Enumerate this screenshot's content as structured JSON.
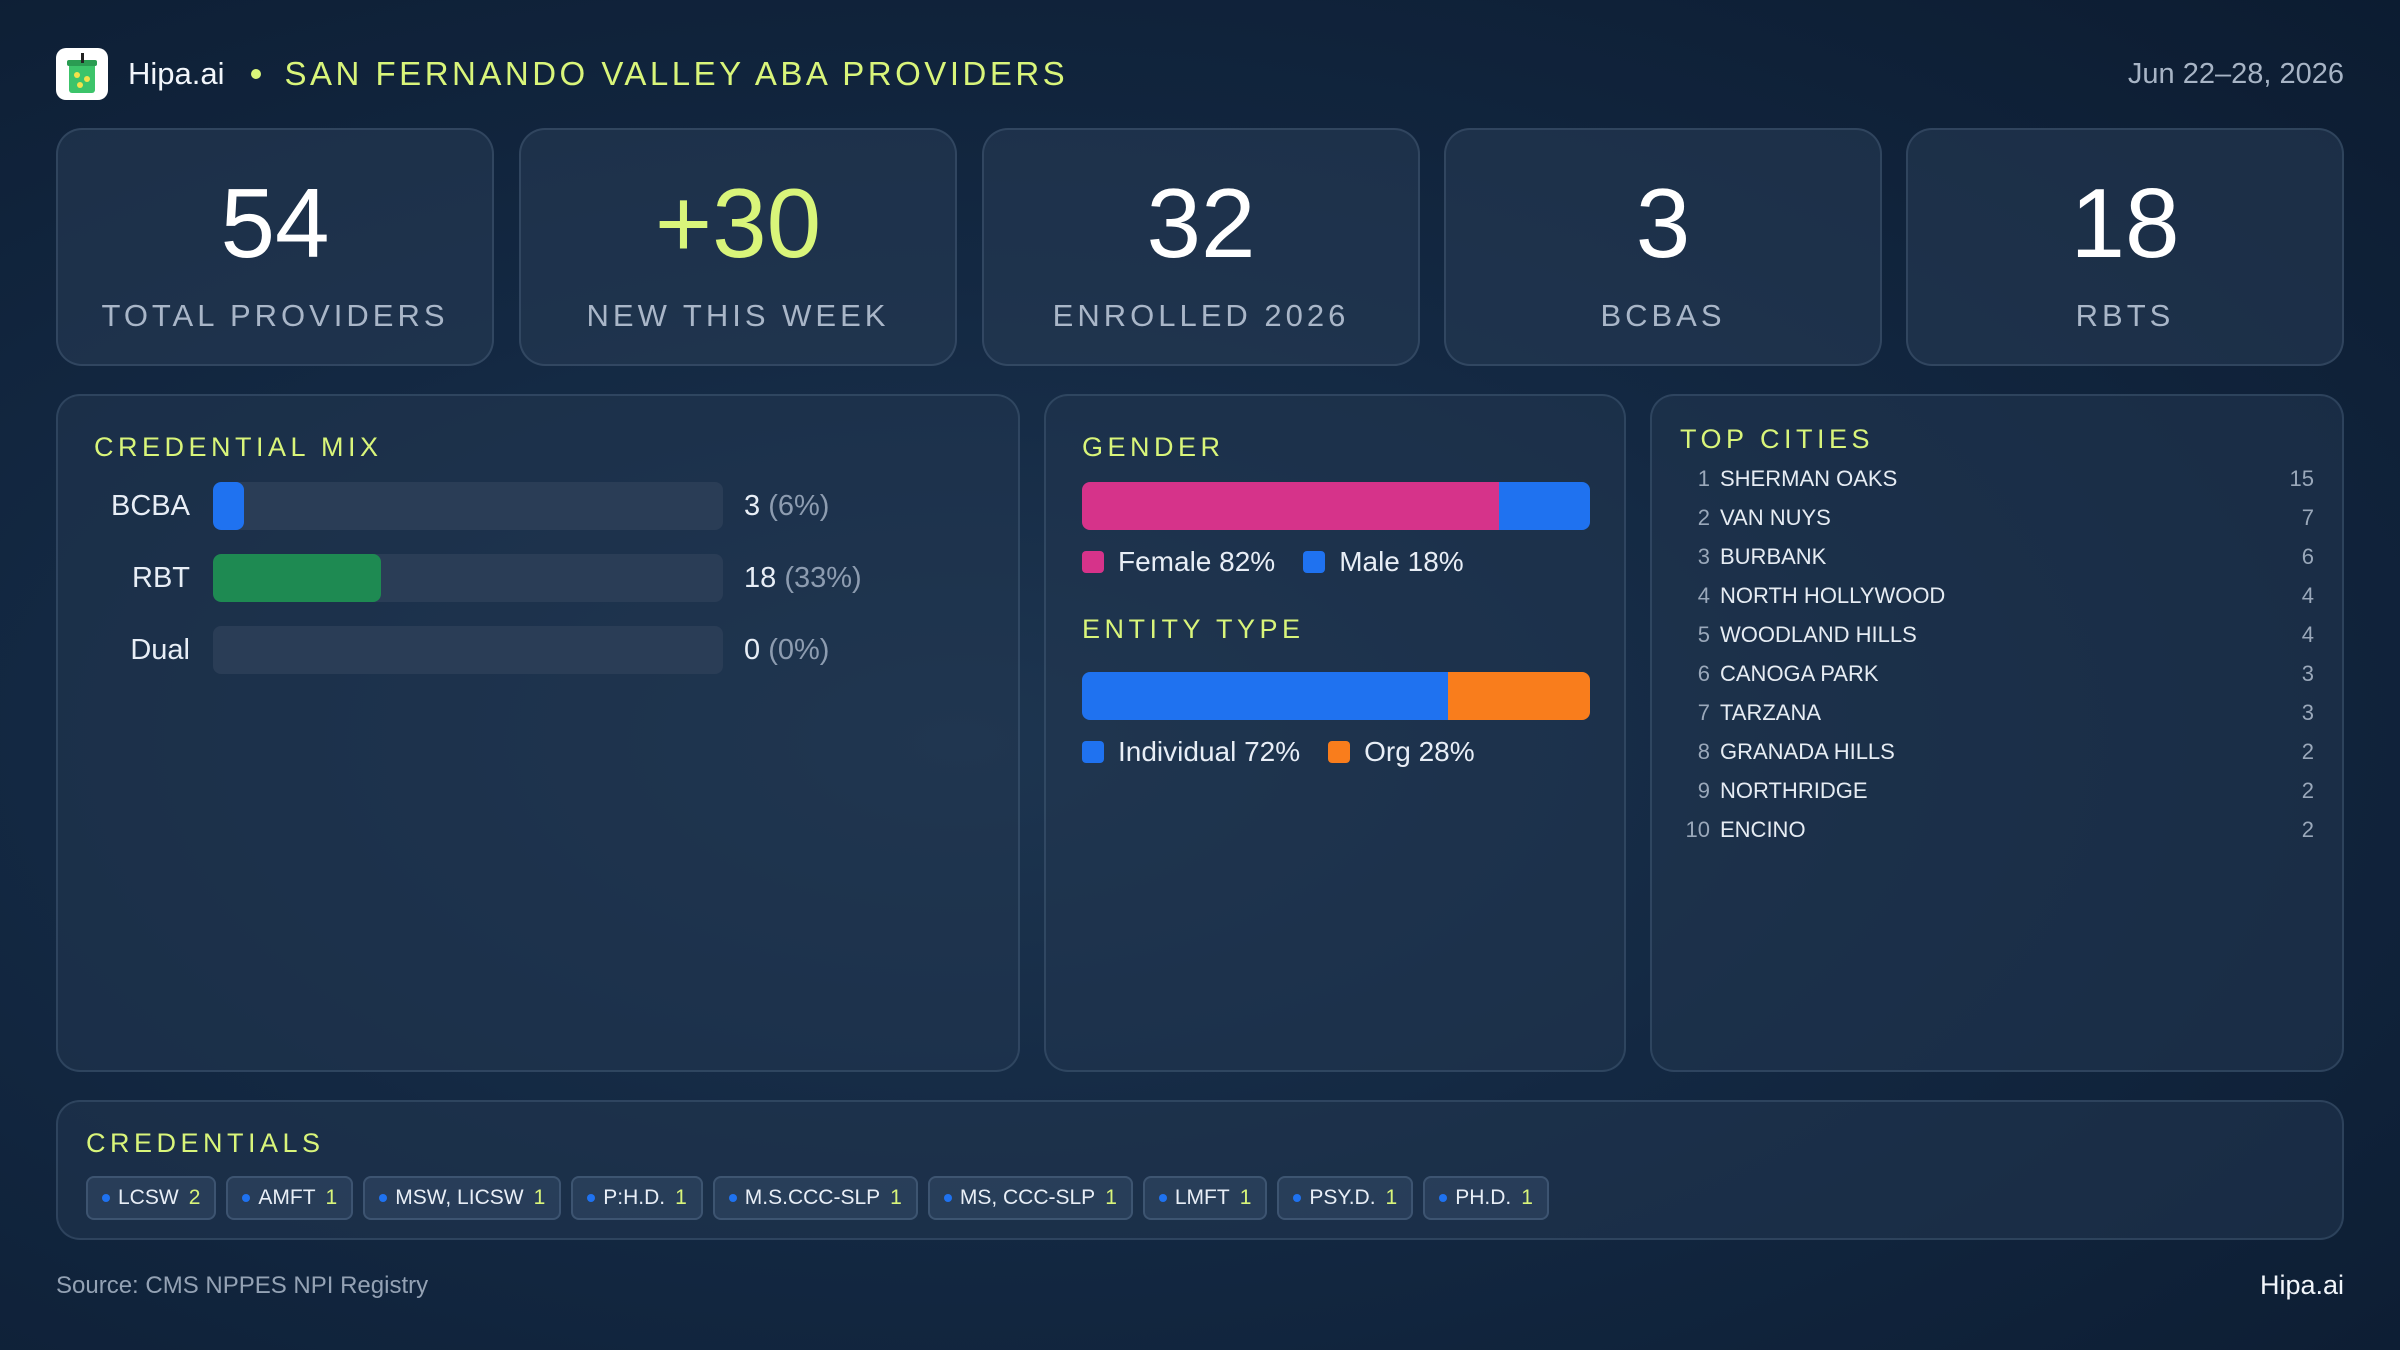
{
  "header": {
    "brand": "Hipa.ai",
    "title": "SAN FERNANDO VALLEY ABA PROVIDERS",
    "date": "Jun 22–28, 2026"
  },
  "stats": [
    {
      "value": "54",
      "label": "TOTAL PROVIDERS"
    },
    {
      "value": "+30",
      "label": "NEW THIS WEEK"
    },
    {
      "value": "32",
      "label": "ENROLLED 2026"
    },
    {
      "value": "3",
      "label": "BCBAS"
    },
    {
      "value": "18",
      "label": "RBTS"
    }
  ],
  "credential_mix": {
    "title": "CREDENTIAL MIX",
    "rows": [
      {
        "label": "BCBA",
        "count": "3",
        "pct": "(6%)",
        "fraction": 0.06,
        "color": "#1f72f0"
      },
      {
        "label": "RBT",
        "count": "18",
        "pct": "(33%)",
        "fraction": 0.33,
        "color": "#1e8a52"
      },
      {
        "label": "Dual",
        "count": "0",
        "pct": "(0%)",
        "fraction": 0.0,
        "color": "#1f72f0"
      }
    ]
  },
  "gender": {
    "title": "GENDER",
    "segments": [
      {
        "label": "Female 82%",
        "fraction": 0.82,
        "color": "#d6338a"
      },
      {
        "label": "Male 18%",
        "fraction": 0.18,
        "color": "#1f72f0"
      }
    ]
  },
  "entity_type": {
    "title": "ENTITY TYPE",
    "segments": [
      {
        "label": "Individual 72%",
        "fraction": 0.72,
        "color": "#1f72f0"
      },
      {
        "label": "Org 28%",
        "fraction": 0.28,
        "color": "#f97d1c"
      }
    ]
  },
  "top_cities": {
    "title": "TOP CITIES",
    "rows": [
      {
        "rank": "1",
        "name": "SHERMAN OAKS",
        "count": "15"
      },
      {
        "rank": "2",
        "name": "VAN NUYS",
        "count": "7"
      },
      {
        "rank": "3",
        "name": "BURBANK",
        "count": "6"
      },
      {
        "rank": "4",
        "name": "NORTH HOLLYWOOD",
        "count": "4"
      },
      {
        "rank": "5",
        "name": "WOODLAND HILLS",
        "count": "4"
      },
      {
        "rank": "6",
        "name": "CANOGA PARK",
        "count": "3"
      },
      {
        "rank": "7",
        "name": "TARZANA",
        "count": "3"
      },
      {
        "rank": "8",
        "name": "GRANADA HILLS",
        "count": "2"
      },
      {
        "rank": "9",
        "name": "NORTHRIDGE",
        "count": "2"
      },
      {
        "rank": "10",
        "name": "ENCINO",
        "count": "2"
      }
    ]
  },
  "credentials": {
    "title": "CREDENTIALS",
    "chips": [
      {
        "label": "LCSW",
        "count": "2"
      },
      {
        "label": "AMFT",
        "count": "1"
      },
      {
        "label": "MSW, LICSW",
        "count": "1"
      },
      {
        "label": "P:H.D.",
        "count": "1"
      },
      {
        "label": "M.S.CCC-SLP",
        "count": "1"
      },
      {
        "label": "MS, CCC-SLP",
        "count": "1"
      },
      {
        "label": "LMFT",
        "count": "1"
      },
      {
        "label": "PSY.D.",
        "count": "1"
      },
      {
        "label": "PH.D.",
        "count": "1"
      }
    ]
  },
  "footer": {
    "source": "Source: CMS NPPES NPI Registry",
    "brand": "Hipa.ai"
  },
  "icons": {
    "logo": "drink-cup-icon"
  }
}
